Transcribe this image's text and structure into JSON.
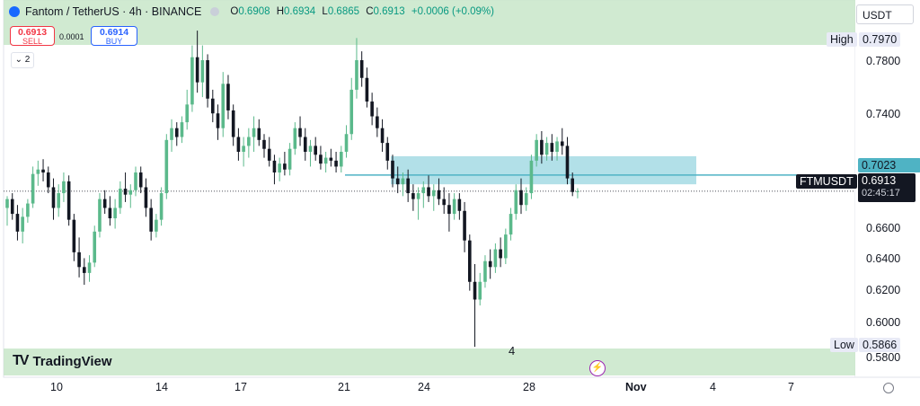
{
  "legend": {
    "title": "Fantom / TetherUS · 4h · BINANCE",
    "open_label": "O",
    "open": "0.6908",
    "high_label": "H",
    "high": "0.6934",
    "low_label": "L",
    "low": "0.6865",
    "close_label": "C",
    "close": "0.6913",
    "change": "+0.0006 (+0.09%)"
  },
  "trade": {
    "sell_price": "0.6913",
    "sell_label": "SELL",
    "spread": "0.0001",
    "buy_price": "0.6914",
    "buy_label": "BUY"
  },
  "indicators_collapse": "⌄ 2",
  "currency": "USDT",
  "price_axis": {
    "ticks": [
      "0.7800",
      "0.7400",
      "0.6600",
      "0.6400",
      "0.6200",
      "0.6000",
      "0.5800"
    ],
    "high_label": "High",
    "high_value": "0.7970",
    "low_label": "Low",
    "low_value": "0.5866",
    "line_value": "0.7023",
    "symbol_tag": "FTMUSDT",
    "current_value": "0.6913",
    "countdown": "02:45:17"
  },
  "time_axis": {
    "ticks": [
      "10",
      "14",
      "17",
      "21",
      "24",
      "28",
      "Nov",
      "4",
      "7"
    ]
  },
  "marker_label": "4",
  "branding": "TradingView",
  "colors": {
    "up": "#089981",
    "down": "#131722",
    "up_body": "#5bb98b",
    "highlight_band": "#c8e6c9",
    "zone": "#a5dbe4",
    "line": "#4fb3c4",
    "accent_blue": "#2962ff",
    "sell_red": "#f23645"
  },
  "chart_data": {
    "type": "candlestick",
    "title": "Fantom / TetherUS · 4h · BINANCE",
    "x_ticks": [
      "10",
      "14",
      "17",
      "21",
      "24",
      "28",
      "Nov",
      "4",
      "7"
    ],
    "y_ticks": [
      0.78,
      0.74,
      0.66,
      0.64,
      0.62,
      0.6,
      0.58
    ],
    "ylim": [
      0.574,
      0.81
    ],
    "high": 0.797,
    "low": 0.5866,
    "horizontal_line": 0.7023,
    "current_price": 0.6913,
    "zone": {
      "from_price": 0.696,
      "to_price": 0.715
    },
    "candles": [
      [
        0.68,
        0.688,
        0.668,
        0.686
      ],
      [
        0.686,
        0.69,
        0.672,
        0.676
      ],
      [
        0.676,
        0.682,
        0.658,
        0.664
      ],
      [
        0.664,
        0.68,
        0.656,
        0.674
      ],
      [
        0.674,
        0.686,
        0.67,
        0.683
      ],
      [
        0.683,
        0.708,
        0.68,
        0.703
      ],
      [
        0.703,
        0.712,
        0.695,
        0.706
      ],
      [
        0.706,
        0.713,
        0.698,
        0.704
      ],
      [
        0.704,
        0.708,
        0.69,
        0.694
      ],
      [
        0.694,
        0.7,
        0.672,
        0.68
      ],
      [
        0.68,
        0.696,
        0.674,
        0.69
      ],
      [
        0.69,
        0.704,
        0.684,
        0.698
      ],
      [
        0.698,
        0.702,
        0.668,
        0.672
      ],
      [
        0.672,
        0.676,
        0.644,
        0.65
      ],
      [
        0.65,
        0.66,
        0.633,
        0.64
      ],
      [
        0.64,
        0.646,
        0.628,
        0.636
      ],
      [
        0.636,
        0.648,
        0.63,
        0.643
      ],
      [
        0.643,
        0.668,
        0.64,
        0.664
      ],
      [
        0.664,
        0.69,
        0.66,
        0.686
      ],
      [
        0.686,
        0.692,
        0.676,
        0.68
      ],
      [
        0.68,
        0.688,
        0.668,
        0.673
      ],
      [
        0.673,
        0.686,
        0.666,
        0.68
      ],
      [
        0.68,
        0.698,
        0.676,
        0.693
      ],
      [
        0.693,
        0.704,
        0.684,
        0.689
      ],
      [
        0.689,
        0.696,
        0.68,
        0.692
      ],
      [
        0.692,
        0.708,
        0.688,
        0.704
      ],
      [
        0.704,
        0.708,
        0.69,
        0.694
      ],
      [
        0.694,
        0.7,
        0.674,
        0.68
      ],
      [
        0.68,
        0.686,
        0.658,
        0.664
      ],
      [
        0.664,
        0.676,
        0.66,
        0.672
      ],
      [
        0.672,
        0.694,
        0.668,
        0.69
      ],
      [
        0.69,
        0.73,
        0.686,
        0.726
      ],
      [
        0.726,
        0.74,
        0.718,
        0.734
      ],
      [
        0.734,
        0.738,
        0.722,
        0.728
      ],
      [
        0.728,
        0.742,
        0.724,
        0.738
      ],
      [
        0.738,
        0.76,
        0.733,
        0.75
      ],
      [
        0.75,
        0.79,
        0.745,
        0.782
      ],
      [
        0.782,
        0.8,
        0.758,
        0.765
      ],
      [
        0.765,
        0.79,
        0.755,
        0.78
      ],
      [
        0.78,
        0.784,
        0.748,
        0.754
      ],
      [
        0.754,
        0.76,
        0.738,
        0.744
      ],
      [
        0.744,
        0.75,
        0.726,
        0.734
      ],
      [
        0.734,
        0.772,
        0.728,
        0.764
      ],
      [
        0.764,
        0.77,
        0.74,
        0.746
      ],
      [
        0.746,
        0.75,
        0.722,
        0.728
      ],
      [
        0.728,
        0.734,
        0.712,
        0.718
      ],
      [
        0.718,
        0.728,
        0.708,
        0.722
      ],
      [
        0.722,
        0.734,
        0.714,
        0.728
      ],
      [
        0.728,
        0.742,
        0.718,
        0.734
      ],
      [
        0.734,
        0.74,
        0.722,
        0.726
      ],
      [
        0.726,
        0.73,
        0.714,
        0.72
      ],
      [
        0.72,
        0.728,
        0.708,
        0.712
      ],
      [
        0.712,
        0.716,
        0.696,
        0.704
      ],
      [
        0.704,
        0.714,
        0.698,
        0.71
      ],
      [
        0.71,
        0.718,
        0.702,
        0.706
      ],
      [
        0.706,
        0.724,
        0.702,
        0.72
      ],
      [
        0.72,
        0.738,
        0.716,
        0.734
      ],
      [
        0.734,
        0.742,
        0.722,
        0.728
      ],
      [
        0.728,
        0.734,
        0.712,
        0.718
      ],
      [
        0.718,
        0.726,
        0.708,
        0.722
      ],
      [
        0.722,
        0.728,
        0.712,
        0.716
      ],
      [
        0.716,
        0.722,
        0.706,
        0.71
      ],
      [
        0.71,
        0.718,
        0.704,
        0.714
      ],
      [
        0.714,
        0.72,
        0.708,
        0.712
      ],
      [
        0.712,
        0.718,
        0.704,
        0.708
      ],
      [
        0.708,
        0.722,
        0.704,
        0.718
      ],
      [
        0.718,
        0.736,
        0.714,
        0.73
      ],
      [
        0.73,
        0.768,
        0.726,
        0.76
      ],
      [
        0.76,
        0.795,
        0.754,
        0.78
      ],
      [
        0.78,
        0.786,
        0.762,
        0.768
      ],
      [
        0.768,
        0.775,
        0.748,
        0.752
      ],
      [
        0.752,
        0.758,
        0.736,
        0.742
      ],
      [
        0.742,
        0.748,
        0.728,
        0.734
      ],
      [
        0.734,
        0.74,
        0.718,
        0.724
      ],
      [
        0.724,
        0.728,
        0.706,
        0.712
      ],
      [
        0.712,
        0.716,
        0.694,
        0.7
      ],
      [
        0.7,
        0.708,
        0.69,
        0.696
      ],
      [
        0.696,
        0.704,
        0.688,
        0.7
      ],
      [
        0.7,
        0.706,
        0.684,
        0.69
      ],
      [
        0.69,
        0.696,
        0.678,
        0.686
      ],
      [
        0.686,
        0.694,
        0.672,
        0.69
      ],
      [
        0.69,
        0.698,
        0.68,
        0.694
      ],
      [
        0.694,
        0.702,
        0.684,
        0.688
      ],
      [
        0.688,
        0.696,
        0.678,
        0.692
      ],
      [
        0.692,
        0.7,
        0.682,
        0.686
      ],
      [
        0.686,
        0.694,
        0.676,
        0.682
      ],
      [
        0.682,
        0.69,
        0.664,
        0.676
      ],
      [
        0.676,
        0.69,
        0.672,
        0.686
      ],
      [
        0.686,
        0.69,
        0.672,
        0.678
      ],
      [
        0.678,
        0.684,
        0.65,
        0.658
      ],
      [
        0.658,
        0.662,
        0.624,
        0.63
      ],
      [
        0.63,
        0.642,
        0.586,
        0.618
      ],
      [
        0.618,
        0.636,
        0.614,
        0.63
      ],
      [
        0.63,
        0.648,
        0.626,
        0.644
      ],
      [
        0.644,
        0.652,
        0.632,
        0.64
      ],
      [
        0.64,
        0.656,
        0.636,
        0.652
      ],
      [
        0.652,
        0.66,
        0.64,
        0.646
      ],
      [
        0.646,
        0.666,
        0.642,
        0.662
      ],
      [
        0.662,
        0.68,
        0.658,
        0.676
      ],
      [
        0.676,
        0.696,
        0.672,
        0.692
      ],
      [
        0.692,
        0.7,
        0.676,
        0.682
      ],
      [
        0.682,
        0.694,
        0.678,
        0.69
      ],
      [
        0.69,
        0.716,
        0.686,
        0.712
      ],
      [
        0.712,
        0.73,
        0.708,
        0.726
      ],
      [
        0.726,
        0.732,
        0.71,
        0.716
      ],
      [
        0.716,
        0.728,
        0.712,
        0.724
      ],
      [
        0.724,
        0.73,
        0.712,
        0.718
      ],
      [
        0.718,
        0.728,
        0.712,
        0.725
      ],
      [
        0.725,
        0.734,
        0.716,
        0.722
      ],
      [
        0.722,
        0.728,
        0.696,
        0.7
      ],
      [
        0.7,
        0.704,
        0.688,
        0.6908
      ],
      [
        0.6908,
        0.6934,
        0.6865,
        0.6913
      ]
    ]
  }
}
